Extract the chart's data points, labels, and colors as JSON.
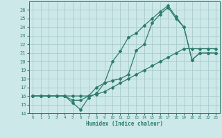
{
  "xlabel": "Humidex (Indice chaleur)",
  "bg_color": "#cce8e8",
  "grid_color": "#aacccc",
  "line_color": "#2d7a6e",
  "xlim": [
    -0.5,
    23.5
  ],
  "ylim": [
    14,
    27
  ],
  "yticks": [
    14,
    15,
    16,
    17,
    18,
    19,
    20,
    21,
    22,
    23,
    24,
    25,
    26
  ],
  "xticks": [
    0,
    1,
    2,
    3,
    4,
    5,
    6,
    7,
    8,
    9,
    10,
    11,
    12,
    13,
    14,
    15,
    16,
    17,
    18,
    19,
    20,
    21,
    22,
    23
  ],
  "line1_x": [
    0,
    1,
    2,
    3,
    4,
    5,
    6,
    7,
    8,
    9,
    10,
    11,
    12,
    13,
    14,
    15,
    16,
    17,
    18,
    19,
    20,
    21,
    22,
    23
  ],
  "line1_y": [
    16,
    16,
    16,
    16,
    16,
    15.2,
    14.4,
    15.8,
    16.3,
    17.5,
    17.8,
    18.0,
    18.5,
    21.3,
    22.0,
    24.5,
    25.5,
    26.3,
    25.0,
    24.0,
    20.2,
    21.0,
    21.0,
    21.0
  ],
  "line2_x": [
    0,
    1,
    2,
    3,
    4,
    5,
    6,
    7,
    8,
    9,
    10,
    11,
    12,
    13,
    14,
    15,
    16,
    17,
    18,
    19,
    20,
    21,
    22,
    23
  ],
  "line2_y": [
    16,
    16,
    16,
    16,
    16,
    15.5,
    15.5,
    16.0,
    17.0,
    17.5,
    20.0,
    21.2,
    22.8,
    23.3,
    24.2,
    25.0,
    25.8,
    26.5,
    25.2,
    24.0,
    20.2,
    21.0,
    21.0,
    21.0
  ],
  "line3_x": [
    0,
    1,
    2,
    3,
    4,
    5,
    6,
    7,
    8,
    9,
    10,
    11,
    12,
    13,
    14,
    15,
    16,
    17,
    18,
    19,
    20,
    21,
    22,
    23
  ],
  "line3_y": [
    16,
    16,
    16,
    16,
    16,
    16,
    16,
    16,
    16.2,
    16.5,
    17.0,
    17.5,
    18.0,
    18.5,
    19.0,
    19.5,
    20.0,
    20.5,
    21.0,
    21.5,
    21.5,
    21.5,
    21.5,
    21.5
  ]
}
